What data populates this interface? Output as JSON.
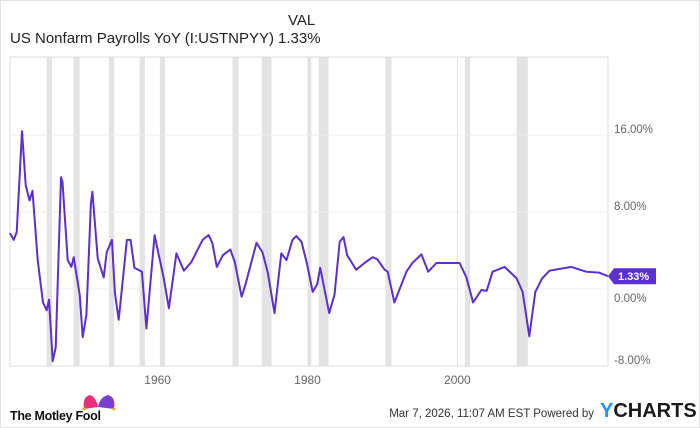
{
  "header": {
    "series_name": "US Nonfarm Payrolls YoY (I:USTNPYY)",
    "val_heading": "VAL",
    "val": "1.33%"
  },
  "footer": {
    "brand": "The Motley Fool",
    "timestamp": "Mar 7, 2026, 11:07 AM EST",
    "powered_by": "Powered by",
    "ycharts_y": "Y",
    "ycharts_rest": "CHARTS"
  },
  "colors": {
    "line": "#5b2fd0",
    "recession": "#e3e3e3",
    "grid": "#ececec"
  },
  "chart_data": {
    "type": "line",
    "title": "US Nonfarm Payrolls YoY (I:USTNPYY)",
    "xlabel": "",
    "ylabel": "",
    "xlim": [
      1940.3,
      2020.1
    ],
    "ylim": [
      -8,
      16
    ],
    "y_ticks": [
      {
        "v": 16,
        "label": "16.00%"
      },
      {
        "v": 8,
        "label": "8.00%"
      },
      {
        "v": 0,
        "label": "0.00%"
      },
      {
        "v": -8,
        "label": "-8.00%"
      }
    ],
    "x_ticks": [
      {
        "v": 1960,
        "label": "1960"
      },
      {
        "v": 1980,
        "label": "1980"
      },
      {
        "v": 2000,
        "label": "2000"
      }
    ],
    "last_value_label": "1.33%",
    "last_value": 1.33,
    "recessions": [
      [
        1945.2,
        1945.9
      ],
      [
        1948.8,
        1949.6
      ],
      [
        1953.5,
        1954.2
      ],
      [
        1957.6,
        1958.3
      ],
      [
        1960.3,
        1961.0
      ],
      [
        1970.0,
        1970.8
      ],
      [
        1973.9,
        1975.2
      ],
      [
        1980.0,
        1980.5
      ],
      [
        1981.5,
        1982.8
      ],
      [
        1990.4,
        1991.2
      ],
      [
        2001.0,
        2001.7
      ],
      [
        2007.9,
        2009.4
      ]
    ],
    "series": [
      {
        "name": "US Nonfarm Payrolls YoY",
        "points": [
          [
            1940.3,
            5.8
          ],
          [
            1940.8,
            5.1
          ],
          [
            1941.2,
            5.9
          ],
          [
            1941.9,
            16.4
          ],
          [
            1942.4,
            10.8
          ],
          [
            1942.9,
            9.2
          ],
          [
            1943.3,
            10.2
          ],
          [
            1944.0,
            3.0
          ],
          [
            1944.7,
            -1.4
          ],
          [
            1945.2,
            -2.2
          ],
          [
            1945.5,
            -1.1
          ],
          [
            1946.0,
            -7.5
          ],
          [
            1946.4,
            -6.1
          ],
          [
            1947.1,
            11.6
          ],
          [
            1947.3,
            11.1
          ],
          [
            1948.0,
            3.0
          ],
          [
            1948.5,
            2.3
          ],
          [
            1948.8,
            3.3
          ],
          [
            1949.6,
            -0.6
          ],
          [
            1950.0,
            -5.0
          ],
          [
            1950.5,
            -2.7
          ],
          [
            1951.1,
            8.9
          ],
          [
            1951.3,
            10.1
          ],
          [
            1952.0,
            3.2
          ],
          [
            1952.8,
            1.2
          ],
          [
            1953.2,
            3.8
          ],
          [
            1953.9,
            5.1
          ],
          [
            1954.3,
            -0.4
          ],
          [
            1954.8,
            -3.2
          ],
          [
            1955.9,
            5.1
          ],
          [
            1956.4,
            5.1
          ],
          [
            1956.9,
            2.2
          ],
          [
            1957.9,
            1.8
          ],
          [
            1958.5,
            -4.1
          ],
          [
            1959.6,
            5.6
          ],
          [
            1960.1,
            3.7
          ],
          [
            1960.8,
            1.2
          ],
          [
            1961.5,
            -2.0
          ],
          [
            1962.5,
            3.7
          ],
          [
            1963.5,
            1.9
          ],
          [
            1964.5,
            2.8
          ],
          [
            1966.0,
            5.1
          ],
          [
            1966.8,
            5.6
          ],
          [
            1967.3,
            4.8
          ],
          [
            1967.9,
            2.3
          ],
          [
            1968.7,
            3.5
          ],
          [
            1969.7,
            4.1
          ],
          [
            1970.3,
            2.8
          ],
          [
            1971.2,
            -0.8
          ],
          [
            1971.7,
            0.4
          ],
          [
            1973.2,
            4.8
          ],
          [
            1974.0,
            3.8
          ],
          [
            1974.7,
            1.7
          ],
          [
            1975.6,
            -2.5
          ],
          [
            1976.5,
            3.7
          ],
          [
            1977.2,
            3.0
          ],
          [
            1978.0,
            5.1
          ],
          [
            1978.5,
            5.5
          ],
          [
            1979.2,
            4.9
          ],
          [
            1979.9,
            2.7
          ],
          [
            1980.7,
            -0.3
          ],
          [
            1981.3,
            0.5
          ],
          [
            1981.7,
            2.2
          ],
          [
            1982.9,
            -2.5
          ],
          [
            1983.6,
            -0.6
          ],
          [
            1984.3,
            4.9
          ],
          [
            1984.8,
            5.4
          ],
          [
            1985.3,
            3.5
          ],
          [
            1986.5,
            2.0
          ],
          [
            1987.6,
            2.7
          ],
          [
            1988.7,
            3.3
          ],
          [
            1989.3,
            3.1
          ],
          [
            1990.3,
            2.0
          ],
          [
            1990.7,
            1.8
          ],
          [
            1991.6,
            -1.4
          ],
          [
            1992.5,
            0.4
          ],
          [
            1993.2,
            1.8
          ],
          [
            1994.0,
            2.7
          ],
          [
            1995.2,
            3.6
          ],
          [
            1996.1,
            1.8
          ],
          [
            1997.2,
            2.7
          ],
          [
            1998.7,
            2.7
          ],
          [
            2000.3,
            2.7
          ],
          [
            2001.2,
            1.2
          ],
          [
            2002.1,
            -1.4
          ],
          [
            2003.2,
            -0.1
          ],
          [
            2003.9,
            -0.2
          ],
          [
            2004.7,
            1.8
          ],
          [
            2006.3,
            2.3
          ],
          [
            2007.9,
            1.1
          ],
          [
            2008.7,
            -0.3
          ],
          [
            2009.6,
            -4.9
          ],
          [
            2010.4,
            -0.3
          ],
          [
            2011.3,
            1.1
          ],
          [
            2012.3,
            1.9
          ],
          [
            2015.2,
            2.3
          ],
          [
            2017.2,
            1.8
          ],
          [
            2018.9,
            1.7
          ],
          [
            2020.1,
            1.33
          ]
        ]
      }
    ]
  }
}
